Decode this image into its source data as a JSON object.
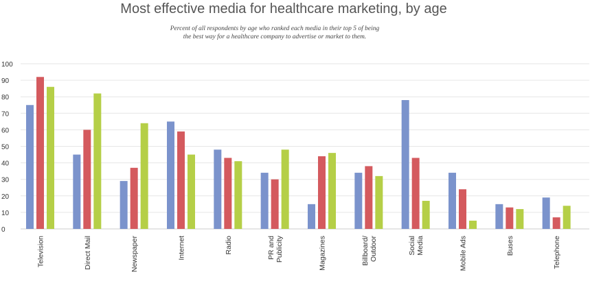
{
  "chart_data": {
    "type": "bar",
    "title": "Most effective media for healthcare marketing, by age",
    "subtitle_lines": [
      "Percent of all respondents by age who ranked each media in their top 5 of being",
      "the best way for a healthcare company to advertise or market to them."
    ],
    "xlabel": "",
    "ylabel": "",
    "ylim": [
      0,
      100
    ],
    "yticks": [
      0,
      10,
      20,
      30,
      40,
      50,
      60,
      70,
      80,
      90,
      100
    ],
    "grid": true,
    "legend": "none",
    "categories": [
      [
        "Television"
      ],
      [
        "Direct Mail"
      ],
      [
        "Newspaper"
      ],
      [
        "Internet"
      ],
      [
        "Radio"
      ],
      [
        "PR and",
        "Publicity"
      ],
      [
        "Magazines"
      ],
      [
        "Billboard/",
        "Outdoor"
      ],
      [
        "Social",
        "Media"
      ],
      [
        "Mobile Ads"
      ],
      [
        "Buses"
      ],
      [
        "Telephone"
      ]
    ],
    "series": [
      {
        "color": "#7b93cc",
        "values": [
          75,
          45,
          29,
          65,
          48,
          34,
          15,
          34,
          78,
          34,
          15,
          19
        ]
      },
      {
        "color": "#d45a5e",
        "values": [
          92,
          60,
          37,
          59,
          43,
          30,
          44,
          38,
          43,
          24,
          13,
          7
        ]
      },
      {
        "color": "#b5cf47",
        "values": [
          86,
          82,
          64,
          45,
          41,
          48,
          46,
          32,
          17,
          5,
          12,
          14
        ]
      }
    ]
  }
}
